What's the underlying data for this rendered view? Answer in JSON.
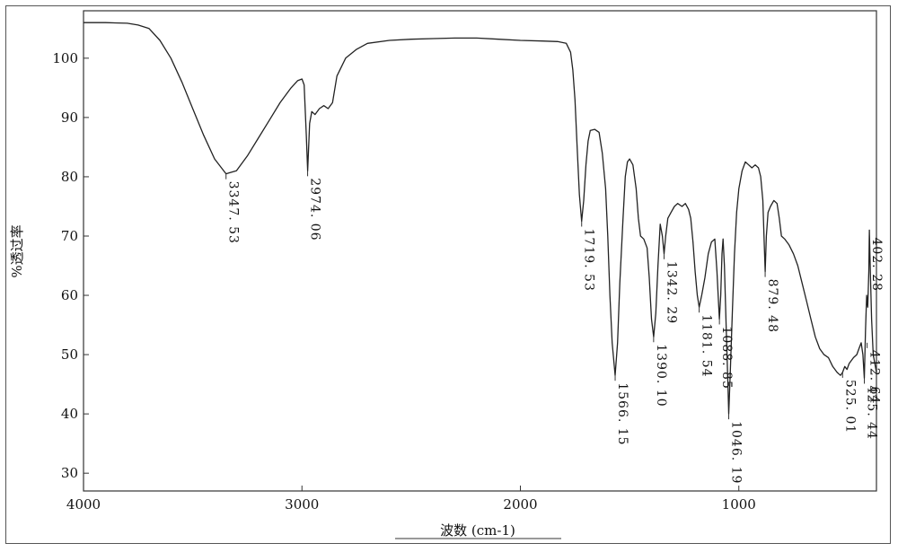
{
  "chart_data": {
    "type": "line",
    "title": "",
    "xlabel": "波数 (cm-1)",
    "ylabel": "%透过率",
    "xlim": [
      4000,
      370
    ],
    "ylim": [
      27,
      108
    ],
    "xticks": [
      "4000",
      "3000",
      "2000",
      "1000"
    ],
    "xtick_values": [
      4000,
      3000,
      2000,
      1000
    ],
    "yticks": [
      "30",
      "40",
      "50",
      "60",
      "70",
      "80",
      "90",
      "100"
    ],
    "ytick_values": [
      30,
      40,
      50,
      60,
      70,
      80,
      90,
      100
    ],
    "grid": false,
    "line_color": "#222222",
    "series": [
      {
        "points": [
          [
            4000,
            106
          ],
          [
            3900,
            106
          ],
          [
            3800,
            105.9
          ],
          [
            3750,
            105.6
          ],
          [
            3700,
            105
          ],
          [
            3650,
            103
          ],
          [
            3600,
            100
          ],
          [
            3550,
            96
          ],
          [
            3500,
            91.5
          ],
          [
            3450,
            87
          ],
          [
            3400,
            83
          ],
          [
            3347.53,
            80.5
          ],
          [
            3300,
            81
          ],
          [
            3250,
            83.5
          ],
          [
            3200,
            86.5
          ],
          [
            3150,
            89.5
          ],
          [
            3100,
            92.5
          ],
          [
            3050,
            95
          ],
          [
            3020,
            96.2
          ],
          [
            3000,
            96.5
          ],
          [
            2990,
            95.5
          ],
          [
            2980,
            87
          ],
          [
            2974.06,
            81
          ],
          [
            2965,
            89
          ],
          [
            2955,
            91
          ],
          [
            2940,
            90.5
          ],
          [
            2920,
            91.5
          ],
          [
            2900,
            92
          ],
          [
            2880,
            91.5
          ],
          [
            2860,
            92.5
          ],
          [
            2840,
            97
          ],
          [
            2800,
            100
          ],
          [
            2750,
            101.5
          ],
          [
            2700,
            102.5
          ],
          [
            2600,
            103
          ],
          [
            2500,
            103.2
          ],
          [
            2400,
            103.3
          ],
          [
            2300,
            103.4
          ],
          [
            2200,
            103.4
          ],
          [
            2100,
            103.2
          ],
          [
            2000,
            103
          ],
          [
            1900,
            102.9
          ],
          [
            1830,
            102.8
          ],
          [
            1790,
            102.5
          ],
          [
            1770,
            101
          ],
          [
            1760,
            98
          ],
          [
            1750,
            93
          ],
          [
            1740,
            85
          ],
          [
            1730,
            77
          ],
          [
            1719.53,
            72.5
          ],
          [
            1710,
            76
          ],
          [
            1700,
            82
          ],
          [
            1690,
            86
          ],
          [
            1680,
            87.8
          ],
          [
            1660,
            88
          ],
          [
            1640,
            87.5
          ],
          [
            1625,
            84
          ],
          [
            1610,
            78
          ],
          [
            1600,
            70
          ],
          [
            1590,
            60
          ],
          [
            1580,
            52
          ],
          [
            1566.15,
            46.5
          ],
          [
            1555,
            52
          ],
          [
            1545,
            62
          ],
          [
            1530,
            73
          ],
          [
            1520,
            80
          ],
          [
            1510,
            82.5
          ],
          [
            1500,
            83
          ],
          [
            1485,
            82
          ],
          [
            1470,
            78
          ],
          [
            1460,
            73
          ],
          [
            1450,
            70
          ],
          [
            1435,
            69.5
          ],
          [
            1420,
            68
          ],
          [
            1410,
            63
          ],
          [
            1400,
            56
          ],
          [
            1390.1,
            53
          ],
          [
            1380,
            57
          ],
          [
            1370,
            65
          ],
          [
            1360,
            72
          ],
          [
            1350,
            70
          ],
          [
            1342.29,
            67
          ],
          [
            1335,
            70
          ],
          [
            1325,
            73
          ],
          [
            1310,
            74
          ],
          [
            1295,
            75
          ],
          [
            1280,
            75.5
          ],
          [
            1260,
            75
          ],
          [
            1245,
            75.5
          ],
          [
            1230,
            74.5
          ],
          [
            1220,
            73
          ],
          [
            1210,
            69
          ],
          [
            1200,
            64
          ],
          [
            1190,
            60
          ],
          [
            1181.54,
            58
          ],
          [
            1170,
            60
          ],
          [
            1155,
            63
          ],
          [
            1140,
            67
          ],
          [
            1125,
            69
          ],
          [
            1110,
            69.5
          ],
          [
            1100,
            64
          ],
          [
            1092,
            58
          ],
          [
            1088.85,
            56
          ],
          [
            1083,
            60
          ],
          [
            1077,
            67
          ],
          [
            1072,
            69.5
          ],
          [
            1066,
            65
          ],
          [
            1058,
            55
          ],
          [
            1050,
            45
          ],
          [
            1046.19,
            40
          ],
          [
            1040,
            46
          ],
          [
            1030,
            57
          ],
          [
            1020,
            67
          ],
          [
            1010,
            74
          ],
          [
            1000,
            78
          ],
          [
            985,
            81
          ],
          [
            970,
            82.5
          ],
          [
            955,
            82
          ],
          [
            940,
            81.5
          ],
          [
            925,
            82
          ],
          [
            910,
            81.5
          ],
          [
            900,
            80
          ],
          [
            890,
            76
          ],
          [
            883,
            68
          ],
          [
            879.48,
            64
          ],
          [
            874,
            70
          ],
          [
            866,
            74
          ],
          [
            855,
            75
          ],
          [
            840,
            76
          ],
          [
            825,
            75.5
          ],
          [
            815,
            73
          ],
          [
            805,
            70
          ],
          [
            790,
            69.5
          ],
          [
            770,
            68.5
          ],
          [
            750,
            67
          ],
          [
            730,
            65
          ],
          [
            710,
            62
          ],
          [
            690,
            59
          ],
          [
            670,
            56
          ],
          [
            650,
            53
          ],
          [
            630,
            51
          ],
          [
            610,
            50
          ],
          [
            590,
            49.5
          ],
          [
            570,
            48
          ],
          [
            550,
            47
          ],
          [
            535,
            46.5
          ],
          [
            525.01,
            47
          ],
          [
            515,
            48
          ],
          [
            505,
            47.5
          ],
          [
            495,
            48.5
          ],
          [
            485,
            49
          ],
          [
            475,
            49.5
          ],
          [
            460,
            50
          ],
          [
            450,
            51
          ],
          [
            440,
            52
          ],
          [
            432,
            50
          ],
          [
            425.44,
            46
          ],
          [
            420,
            54
          ],
          [
            415,
            60
          ],
          [
            410,
            58
          ],
          [
            405,
            64
          ],
          [
            402.28,
            71
          ],
          [
            398,
            64
          ],
          [
            392,
            56
          ],
          [
            385,
            50
          ],
          [
            375,
            48
          ],
          [
            370,
            47
          ]
        ]
      }
    ],
    "peak_labels": [
      {
        "text": "3347. 53",
        "x": 3347.53,
        "y": 80.5
      },
      {
        "text": "2974. 06",
        "x": 2974.06,
        "y": 81
      },
      {
        "text": "1719. 53",
        "x": 1719.53,
        "y": 72.5
      },
      {
        "text": "1566. 15",
        "x": 1566.15,
        "y": 46.5
      },
      {
        "text": "1390. 10",
        "x": 1390.1,
        "y": 53
      },
      {
        "text": "1342. 29",
        "x": 1342.29,
        "y": 67
      },
      {
        "text": "1181. 54",
        "x": 1181.54,
        "y": 58
      },
      {
        "text": "1088. 85",
        "x": 1088.85,
        "y": 56
      },
      {
        "text": "1046. 19",
        "x": 1046.19,
        "y": 40
      },
      {
        "text": "879. 48",
        "x": 879.48,
        "y": 64
      },
      {
        "text": "525. 01",
        "x": 525.01,
        "y": 47
      },
      {
        "text": "425. 44",
        "x": 425.44,
        "y": 46
      },
      {
        "text": "412. 64",
        "x": 412.64,
        "y": 52
      },
      {
        "text": "402. 28",
        "x": 402.28,
        "y": 71
      }
    ]
  }
}
